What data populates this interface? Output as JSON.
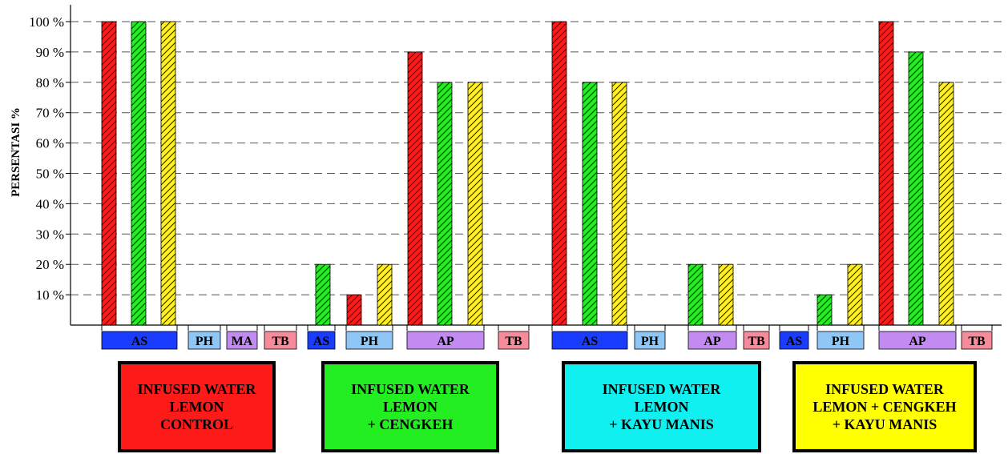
{
  "chart_data": {
    "type": "bar",
    "ylabel": "PERSENTASI %",
    "ylim": [
      0,
      100
    ],
    "yticks": [
      "10 %",
      "20 %",
      "30 %",
      "40 %",
      "50 %",
      "60 %",
      "70 %",
      "80 %",
      "90 %",
      "100 %"
    ],
    "grid": true,
    "colors": {
      "red": "#ff1a1a",
      "green": "#22ee22",
      "yellow": "#ffee22"
    },
    "category_colors": {
      "AS": "#1a3cff",
      "PH": "#8ec6f5",
      "MA": "#c28bf2",
      "AP": "#c28bf2",
      "TB": "#f58b9b"
    },
    "groups": [
      {
        "label": "INFUSED WATER\nLEMON\nCONTROL",
        "box_color": "#ff1a1a",
        "categories": [
          {
            "code": "AS",
            "values": [
              100,
              100,
              100
            ]
          },
          {
            "code": "PH",
            "values": [
              0,
              0,
              0
            ]
          },
          {
            "code": "MA",
            "values": [
              0,
              0,
              0
            ]
          },
          {
            "code": "TB",
            "values": [
              0,
              0,
              0
            ]
          }
        ]
      },
      {
        "label": "INFUSED WATER\nLEMON\n+ CENGKEH",
        "box_color": "#22ee22",
        "categories": [
          {
            "code": "AS",
            "values": [
              0,
              20,
              0
            ]
          },
          {
            "code": "PH",
            "values": [
              10,
              0,
              20
            ]
          },
          {
            "code": "AP",
            "values": [
              90,
              80,
              80
            ]
          },
          {
            "code": "TB",
            "values": [
              0,
              0,
              0
            ]
          }
        ]
      },
      {
        "label": "INFUSED WATER\nLEMON\n+ KAYU MANIS",
        "box_color": "#11f0f0",
        "categories": [
          {
            "code": "AS",
            "values": [
              100,
              80,
              80
            ]
          },
          {
            "code": "PH",
            "values": [
              0,
              0,
              0
            ]
          },
          {
            "code": "AP",
            "values": [
              0,
              20,
              20
            ]
          },
          {
            "code": "TB",
            "values": [
              0,
              0,
              0
            ]
          }
        ]
      },
      {
        "label": "INFUSED WATER\nLEMON + CENGKEH\n+ KAYU MANIS",
        "box_color": "#ffff00",
        "categories": [
          {
            "code": "AS",
            "values": [
              0,
              0,
              0
            ]
          },
          {
            "code": "PH",
            "values": [
              0,
              10,
              20
            ]
          },
          {
            "code": "AP",
            "values": [
              100,
              90,
              80
            ]
          },
          {
            "code": "TB",
            "values": [
              0,
              0,
              0
            ]
          }
        ]
      }
    ]
  }
}
